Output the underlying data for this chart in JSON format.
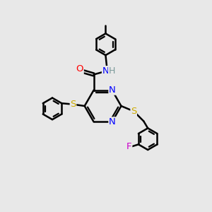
{
  "bg_color": "#e8e8e8",
  "bond_color": "#000000",
  "bond_width": 1.8,
  "atom_colors": {
    "N": "#0000ff",
    "O": "#ff0000",
    "S": "#ccaa00",
    "F": "#cc00cc",
    "H": "#7a9999",
    "C": "#000000"
  },
  "font_size": 9.5
}
